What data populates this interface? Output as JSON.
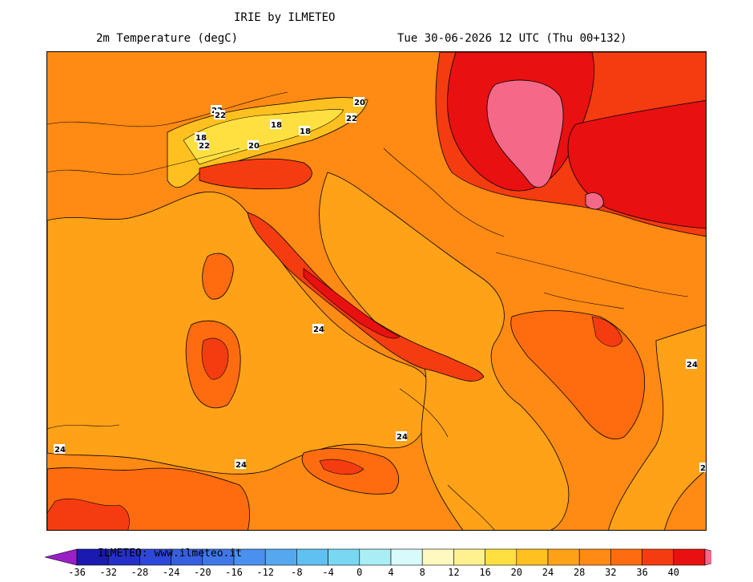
{
  "header": {
    "title": "IRIE by ILMETEO",
    "variable": "2m Temperature (degC)",
    "valid_time": "Tue 30-06-2026 12 UTC (Thu 00+132)"
  },
  "map": {
    "contour_labels": [
      "22",
      "22",
      "20",
      "18",
      "18",
      "22",
      "20",
      "22",
      "18",
      "20",
      "24",
      "24",
      "24",
      "24",
      "24",
      "2"
    ]
  },
  "colorbar": {
    "watermark": "ILMETEO: www.ilmeteo.it",
    "ticks": [
      "-36",
      "-32",
      "-28",
      "-24",
      "-20",
      "-16",
      "-12",
      "-8",
      "-4",
      "0",
      "4",
      "8",
      "12",
      "16",
      "20",
      "24",
      "28",
      "32",
      "36",
      "40"
    ],
    "colors": [
      "#9a1fc4",
      "#1a1ab0",
      "#2430c8",
      "#2d48d8",
      "#3760e0",
      "#4078e8",
      "#4a90ee",
      "#55a8f0",
      "#60c0f2",
      "#78d8f2",
      "#a8eef4",
      "#d8fafa",
      "#fff8c0",
      "#fff090",
      "#ffe040",
      "#ffc020",
      "#ffa218",
      "#ff8a14",
      "#ff6c10",
      "#f53c10",
      "#e81010",
      "#f56888"
    ]
  }
}
